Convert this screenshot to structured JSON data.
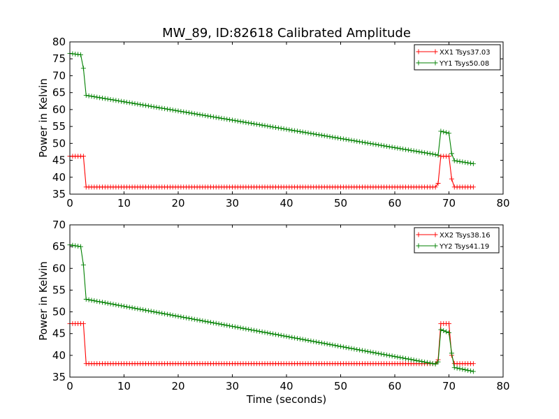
{
  "title": "MW_89, ID:82618 Calibrated Amplitude",
  "chart_data": [
    {
      "type": "line",
      "xlabel": "",
      "ylabel": "Power in Kelvin",
      "xlim": [
        0,
        80
      ],
      "ylim": [
        35,
        80
      ],
      "xticks": [
        "0",
        "10",
        "20",
        "30",
        "40",
        "50",
        "60",
        "70",
        "80"
      ],
      "yticks": [
        "35",
        "40",
        "45",
        "50",
        "55",
        "60",
        "65",
        "70",
        "75",
        "80"
      ],
      "legend_position": "top-right",
      "grid": false,
      "x_sample_step": 0.5,
      "series": [
        {
          "name": "XX1 Tsys37.03",
          "color": "#ff0000",
          "marker": "+",
          "points": [
            [
              0,
              46.2
            ],
            [
              2.5,
              46.2
            ],
            [
              3,
              37.1
            ],
            [
              67.5,
              37.1
            ],
            [
              68,
              38.2
            ],
            [
              68.5,
              46.2
            ],
            [
              70,
              46.2
            ],
            [
              70.5,
              39.5
            ],
            [
              71,
              37.1
            ],
            [
              74.5,
              37.1
            ]
          ]
        },
        {
          "name": "YY1 Tsys50.08",
          "color": "#008000",
          "marker": "+",
          "points": [
            [
              0,
              76.6
            ],
            [
              2,
              76.2
            ],
            [
              2.5,
              72.2
            ],
            [
              3,
              64.2
            ],
            [
              67.5,
              46.7
            ],
            [
              68,
              46.5
            ],
            [
              68.5,
              53.6
            ],
            [
              70,
              53.0
            ],
            [
              70.5,
              47.0
            ],
            [
              71,
              44.9
            ],
            [
              74.5,
              44.0
            ]
          ]
        }
      ]
    },
    {
      "type": "line",
      "xlabel": "Time (seconds)",
      "ylabel": "Power in Kelvin",
      "xlim": [
        0,
        80
      ],
      "ylim": [
        35,
        70
      ],
      "xticks": [
        "0",
        "10",
        "20",
        "30",
        "40",
        "50",
        "60",
        "70",
        "80"
      ],
      "yticks": [
        "35",
        "40",
        "45",
        "50",
        "55",
        "60",
        "65",
        "70"
      ],
      "legend_position": "top-right",
      "grid": false,
      "x_sample_step": 0.5,
      "series": [
        {
          "name": "XX2 Tsys38.16",
          "color": "#ff0000",
          "marker": "+",
          "points": [
            [
              0,
              47.3
            ],
            [
              2.5,
              47.3
            ],
            [
              3,
              38.1
            ],
            [
              67.5,
              38.1
            ],
            [
              68,
              39.0
            ],
            [
              68.5,
              47.3
            ],
            [
              70,
              47.3
            ],
            [
              70.5,
              40.0
            ],
            [
              71,
              38.1
            ],
            [
              74.5,
              38.1
            ]
          ]
        },
        {
          "name": "YY2 Tsys41.19",
          "color": "#008000",
          "marker": "+",
          "points": [
            [
              0,
              65.4
            ],
            [
              2,
              65.0
            ],
            [
              2.5,
              60.8
            ],
            [
              3,
              52.9
            ],
            [
              67.5,
              38.0
            ],
            [
              68,
              38.5
            ],
            [
              68.5,
              45.9
            ],
            [
              70,
              45.2
            ],
            [
              70.5,
              40.5
            ],
            [
              71,
              37.2
            ],
            [
              74.5,
              36.3
            ]
          ]
        }
      ]
    }
  ]
}
